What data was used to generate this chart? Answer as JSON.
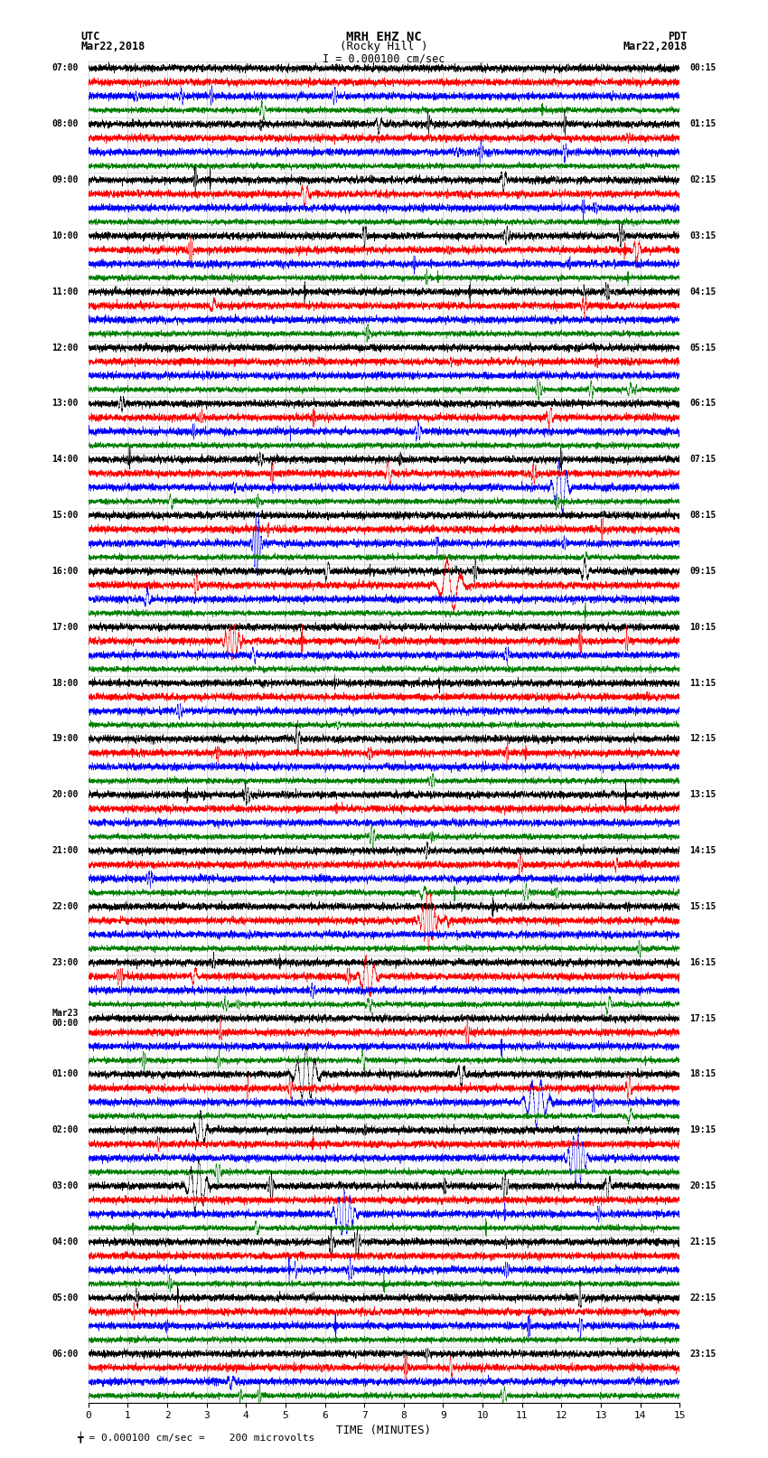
{
  "title_line1": "MRH EHZ NC",
  "title_line2": "(Rocky Hill )",
  "scale_label": "I = 0.000100 cm/sec",
  "utc_label": "UTC",
  "utc_date": "Mar22,2018",
  "pdt_label": "PDT",
  "pdt_date": "Mar22,2018",
  "bottom_label": "╈ = 0.000100 cm/sec =    200 microvolts",
  "xlabel": "TIME (MINUTES)",
  "xlim": [
    0,
    15
  ],
  "xticks": [
    0,
    1,
    2,
    3,
    4,
    5,
    6,
    7,
    8,
    9,
    10,
    11,
    12,
    13,
    14,
    15
  ],
  "bg_color": "#ffffff",
  "trace_colors": [
    "black",
    "red",
    "blue",
    "green"
  ],
  "noise_seed": 42,
  "num_hour_groups": 24,
  "traces_per_group": 4,
  "left_label_rows": [
    "07:00",
    "08:00",
    "09:00",
    "10:00",
    "11:00",
    "12:00",
    "13:00",
    "14:00",
    "15:00",
    "16:00",
    "17:00",
    "18:00",
    "19:00",
    "20:00",
    "21:00",
    "22:00",
    "23:00",
    "Mar23\n00:00",
    "01:00",
    "02:00",
    "03:00",
    "04:00",
    "05:00",
    "06:00"
  ],
  "right_label_rows": [
    "00:15",
    "01:15",
    "02:15",
    "03:15",
    "04:15",
    "05:15",
    "06:15",
    "07:15",
    "08:15",
    "09:15",
    "10:15",
    "11:15",
    "12:15",
    "13:15",
    "14:15",
    "15:15",
    "16:15",
    "17:15",
    "18:15",
    "19:15",
    "20:15",
    "21:15",
    "22:15",
    "23:15"
  ]
}
